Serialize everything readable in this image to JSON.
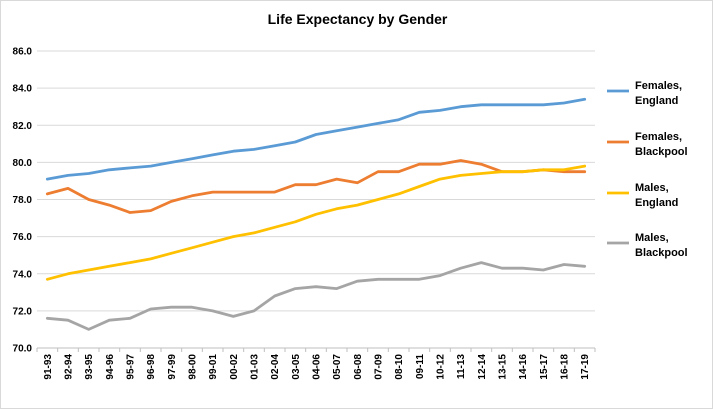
{
  "chart_data": {
    "type": "line",
    "title": "Life Expectancy by Gender",
    "xlabel": "",
    "ylabel": "",
    "ylim": [
      70.0,
      86.0
    ],
    "yticks": [
      "70.0",
      "72.0",
      "74.0",
      "76.0",
      "78.0",
      "80.0",
      "82.0",
      "84.0",
      "86.0"
    ],
    "grid": true,
    "legend_position": "right",
    "categories": [
      "91-93",
      "92-94",
      "93-95",
      "94-96",
      "95-97",
      "96-98",
      "97-99",
      "98-00",
      "99-01",
      "00-02",
      "01-03",
      "02-04",
      "03-05",
      "04-06",
      "05-07",
      "06-08",
      "07-09",
      "08-10",
      "09-11",
      "10-12",
      "11-13",
      "12-14",
      "13-15",
      "14-16",
      "15-17",
      "16-18",
      "17-19"
    ],
    "series": [
      {
        "name": "Females, England",
        "line1": "Females,",
        "line2": "England",
        "color": "#5b9bd5",
        "values": [
          79.1,
          79.3,
          79.4,
          79.6,
          79.7,
          79.8,
          80.0,
          80.2,
          80.4,
          80.6,
          80.7,
          80.9,
          81.1,
          81.5,
          81.7,
          81.9,
          82.1,
          82.3,
          82.7,
          82.8,
          83.0,
          83.1,
          83.1,
          83.1,
          83.1,
          83.2,
          83.4
        ]
      },
      {
        "name": "Females, Blackpool",
        "line1": "Females,",
        "line2": "Blackpool",
        "color": "#ed7d31",
        "values": [
          78.3,
          78.6,
          78.0,
          77.7,
          77.3,
          77.4,
          77.9,
          78.2,
          78.4,
          78.4,
          78.4,
          78.4,
          78.8,
          78.8,
          79.1,
          78.9,
          79.5,
          79.5,
          79.9,
          79.9,
          80.1,
          79.9,
          79.5,
          79.5,
          79.6,
          79.5,
          79.5
        ]
      },
      {
        "name": "Males, England",
        "line1": "Males,",
        "line2": "England",
        "color": "#ffc000",
        "values": [
          73.7,
          74.0,
          74.2,
          74.4,
          74.6,
          74.8,
          75.1,
          75.4,
          75.7,
          76.0,
          76.2,
          76.5,
          76.8,
          77.2,
          77.5,
          77.7,
          78.0,
          78.3,
          78.7,
          79.1,
          79.3,
          79.4,
          79.5,
          79.5,
          79.6,
          79.6,
          79.8
        ]
      },
      {
        "name": "Males, Blackpool",
        "line1": "Males,",
        "line2": "Blackpool",
        "color": "#a5a5a5",
        "values": [
          71.6,
          71.5,
          71.0,
          71.5,
          71.6,
          72.1,
          72.2,
          72.2,
          72.0,
          71.7,
          72.0,
          72.8,
          73.2,
          73.3,
          73.2,
          73.6,
          73.7,
          73.7,
          73.7,
          73.9,
          74.3,
          74.6,
          74.3,
          74.3,
          74.2,
          74.5,
          74.4
        ]
      }
    ]
  }
}
